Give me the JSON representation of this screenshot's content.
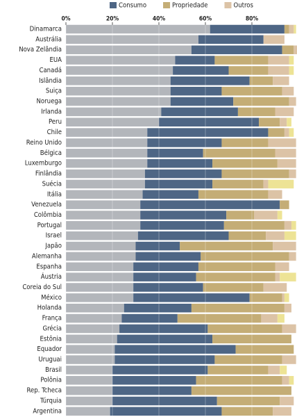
{
  "chart_data": {
    "type": "stacked-bar-horizontal",
    "categories": [
      "Dinamarca",
      "Austrália",
      "Nova Zelândia",
      "EUA",
      "Canadá",
      "Islândia",
      "Suiça",
      "Noruega",
      "Irlanda",
      "Peru",
      "Chile",
      "Reino Unido",
      "Bélgica",
      "Luxemburgo",
      "Finlândia",
      "Suécia",
      "Itália",
      "Venezuela",
      "Colômbia",
      "Portugal",
      "Israel",
      "Japão",
      "Alemanha",
      "Espanha",
      "Áustria",
      "Coreia do Sul",
      "México",
      "Holanda",
      "França",
      "Grécia",
      "Estônia",
      "Equador",
      "Uruguai",
      "Brasil",
      "Polônia",
      "Rep. Tcheca",
      "Túrquia",
      "Argentina"
    ],
    "series": [
      {
        "color": "#b3b6bb",
        "values": [
          62,
          57,
          54,
          47,
          46,
          45,
          45,
          45,
          41,
          40,
          35,
          35,
          35,
          35,
          34,
          34,
          33,
          32,
          32,
          32,
          31,
          30,
          30,
          29,
          29,
          29,
          29,
          25,
          24,
          23,
          22,
          21,
          21,
          20,
          20,
          20,
          20,
          19
        ]
      },
      {
        "name": "Consumo",
        "color": "#4e6685",
        "values": [
          32,
          28,
          39,
          17,
          24,
          34,
          22,
          27,
          33,
          43,
          52,
          32,
          24,
          28,
          33,
          29,
          24,
          60,
          37,
          36,
          39,
          19,
          28,
          28,
          27,
          30,
          50,
          29,
          24,
          38,
          41,
          52,
          43,
          41,
          36,
          34,
          45,
          48
        ]
      },
      {
        "name": "Propriedade",
        "color": "#c4ad76",
        "values": [
          2,
          0,
          5,
          23,
          17,
          10,
          26,
          24,
          16,
          9,
          7,
          20,
          31,
          28,
          29,
          22,
          30,
          4,
          12,
          26,
          16,
          40,
          38,
          33,
          34,
          26,
          14,
          40,
          36,
          32,
          34,
          25,
          29,
          26,
          37,
          43,
          27,
          22
        ]
      },
      {
        "name": "Outros",
        "color": "#dcc3a6",
        "values": [
          2,
          9,
          2,
          9,
          9,
          7,
          5,
          3,
          8,
          3,
          2,
          12,
          9,
          8,
          3,
          2,
          6,
          0,
          10,
          3,
          8,
          10,
          3,
          6,
          2,
          10,
          1,
          3,
          7,
          6,
          0,
          0,
          6,
          5,
          3,
          0,
          6,
          8
        ]
      },
      {
        "color": "#ede395",
        "values": [
          1,
          0,
          0,
          2,
          2,
          0,
          0,
          0,
          0,
          2,
          2,
          0,
          0,
          0,
          0,
          11,
          0,
          0,
          2,
          2,
          5,
          0,
          0,
          0,
          7,
          0,
          2,
          0,
          3,
          0,
          0,
          0,
          0,
          3,
          2,
          0,
          0,
          0
        ]
      }
    ],
    "xlim": [
      0,
      100
    ],
    "xticks": [
      {
        "value": 0,
        "label": "0%"
      },
      {
        "value": 20,
        "label": "20%"
      },
      {
        "value": 40,
        "label": "40%"
      },
      {
        "value": 60,
        "label": "60%"
      },
      {
        "value": 80,
        "label": "80%"
      }
    ]
  }
}
